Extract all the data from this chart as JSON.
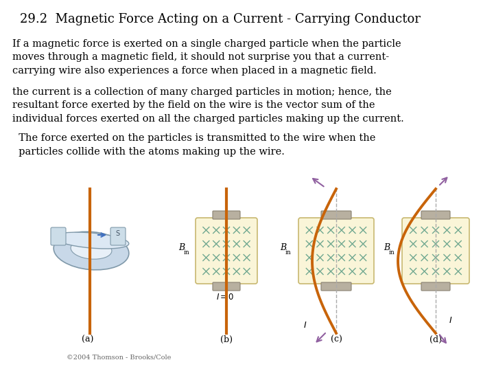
{
  "title": "29.2  Magnetic Force Acting on a Current - Carrying Conductor",
  "background_color": "#ffffff",
  "paragraph1": "If a magnetic force is exerted on a single charged particle when the particle\nmoves through a magnetic field, it should not surprise you that a current-\ncarrying wire also experiences a force when placed in a magnetic field.",
  "paragraph2": "the current is a collection of many charged particles in motion; hence, the\nresultant force exerted by the field on the wire is the vector sum of the\nindividual forces exerted on all the charged particles making up the current.",
  "paragraph3": "  The force exerted on the particles is transmitted to the wire when the\n  particles collide with the atoms making up the wire.",
  "copyright": "©2004 Thomson - Brooks/Cole",
  "wire_color": "#c8640a",
  "arrow_color": "#9060a0",
  "box_fill": "#faf5d8",
  "box_edge": "#c8b870",
  "x_marker_color": "#70a890",
  "bar_color": "#b8b0a0",
  "bar_edge": "#888070",
  "mag_color": "#c8d8e8",
  "mag_edge": "#8099aa",
  "dash_color": "#aaaaaa"
}
